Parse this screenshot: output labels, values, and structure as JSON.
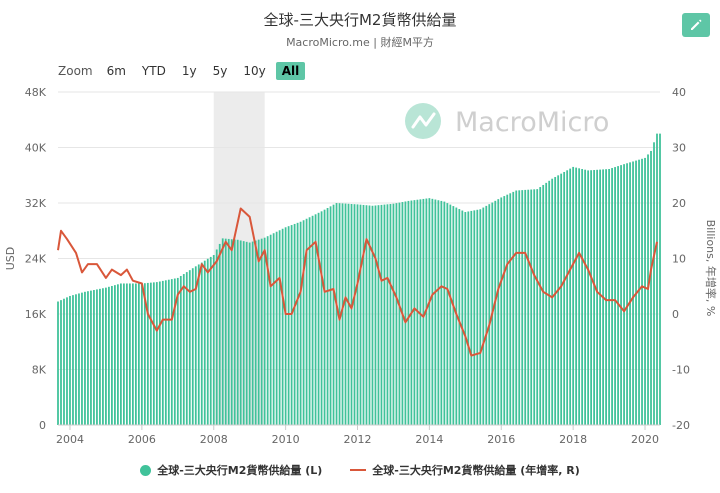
{
  "header": {
    "title": "全球-三大央行M2貨幣供給量",
    "subtitle": "MacroMicro.me | 財經M平方"
  },
  "toolbar": {
    "zoom_label": "Zoom",
    "ranges": [
      "6m",
      "YTD",
      "1y",
      "5y",
      "10y",
      "All"
    ],
    "active_range": "All",
    "edit_icon": "pencil-icon"
  },
  "watermark": "MacroMicro",
  "colors": {
    "bars": "#40c29a",
    "line": "#d9573a",
    "edit_button": "#5ec6a6",
    "shade": "#ececec"
  },
  "legend": {
    "bars_label": "全球-三大央行M2貨幣供給量 (L)",
    "line_label": "全球-三大央行M2貨幣供給量 (年增率, R)"
  },
  "chart_data": {
    "type": "bar",
    "title": "全球-三大央行M2貨幣供給量",
    "xlabel": "",
    "x_ticks": [
      "2004",
      "2006",
      "2008",
      "2010",
      "2012",
      "2014",
      "2016",
      "2018",
      "2020"
    ],
    "left_axis": {
      "label": "USD",
      "ylim": [
        0,
        48000
      ],
      "ticks": [
        "0",
        "8K",
        "16K",
        "24K",
        "32K",
        "40K",
        "48K"
      ]
    },
    "right_axis": {
      "label": "Billions, 年增率, %",
      "ylim": [
        -20,
        40
      ],
      "ticks": [
        "-20",
        "-10",
        "0",
        "10",
        "20",
        "30",
        "40"
      ]
    },
    "shaded_period": [
      "2008-01",
      "2009-06"
    ],
    "grid": true,
    "legend_position": "bottom",
    "series": [
      {
        "name": "全球-三大央行M2貨幣供給量 (L)",
        "kind": "bar",
        "axis": "left",
        "points": [
          [
            "2003-09",
            17800
          ],
          [
            "2004-01",
            18600
          ],
          [
            "2004-06",
            19200
          ],
          [
            "2005-01",
            19800
          ],
          [
            "2005-06",
            20400
          ],
          [
            "2006-01",
            20400
          ],
          [
            "2006-06",
            20600
          ],
          [
            "2007-01",
            21200
          ],
          [
            "2007-06",
            22600
          ],
          [
            "2008-01",
            24500
          ],
          [
            "2008-04",
            26900
          ],
          [
            "2008-09",
            26700
          ],
          [
            "2009-01",
            26300
          ],
          [
            "2009-06",
            27000
          ],
          [
            "2010-01",
            28500
          ],
          [
            "2010-06",
            29300
          ],
          [
            "2011-01",
            30800
          ],
          [
            "2011-06",
            32000
          ],
          [
            "2012-01",
            31800
          ],
          [
            "2012-06",
            31600
          ],
          [
            "2013-01",
            31900
          ],
          [
            "2013-06",
            32300
          ],
          [
            "2014-01",
            32700
          ],
          [
            "2014-06",
            32200
          ],
          [
            "2015-01",
            30700
          ],
          [
            "2015-06",
            31100
          ],
          [
            "2016-01",
            32800
          ],
          [
            "2016-06",
            33800
          ],
          [
            "2017-01",
            34000
          ],
          [
            "2017-06",
            35500
          ],
          [
            "2018-01",
            37200
          ],
          [
            "2018-06",
            36700
          ],
          [
            "2019-01",
            36900
          ],
          [
            "2019-06",
            37600
          ],
          [
            "2020-01",
            38500
          ],
          [
            "2020-03",
            39500
          ],
          [
            "2020-05",
            42000
          ]
        ]
      },
      {
        "name": "全球-三大央行M2貨幣供給量 (年增率, R)",
        "kind": "line",
        "axis": "right",
        "points": [
          [
            "2003-09",
            11.5
          ],
          [
            "2003-10",
            15
          ],
          [
            "2003-12",
            13.5
          ],
          [
            "2004-03",
            11
          ],
          [
            "2004-05",
            7.5
          ],
          [
            "2004-07",
            9
          ],
          [
            "2004-10",
            9
          ],
          [
            "2005-01",
            6.5
          ],
          [
            "2005-03",
            8
          ],
          [
            "2005-06",
            7
          ],
          [
            "2005-08",
            8
          ],
          [
            "2005-10",
            6
          ],
          [
            "2006-01",
            5.5
          ],
          [
            "2006-03",
            0
          ],
          [
            "2006-06",
            -3
          ],
          [
            "2006-08",
            -1
          ],
          [
            "2006-11",
            -1
          ],
          [
            "2007-01",
            3.5
          ],
          [
            "2007-03",
            5
          ],
          [
            "2007-05",
            4
          ],
          [
            "2007-07",
            4.5
          ],
          [
            "2007-09",
            9
          ],
          [
            "2007-11",
            7.5
          ],
          [
            "2008-02",
            9.5
          ],
          [
            "2008-05",
            13
          ],
          [
            "2008-07",
            11.5
          ],
          [
            "2008-10",
            19
          ],
          [
            "2009-01",
            17.5
          ],
          [
            "2009-04",
            9.5
          ],
          [
            "2009-06",
            11.5
          ],
          [
            "2009-08",
            5
          ],
          [
            "2009-11",
            6.5
          ],
          [
            "2010-01",
            0
          ],
          [
            "2010-03",
            0
          ],
          [
            "2010-06",
            4
          ],
          [
            "2010-08",
            11.5
          ],
          [
            "2010-11",
            13
          ],
          [
            "2011-02",
            4
          ],
          [
            "2011-05",
            4.5
          ],
          [
            "2011-07",
            -1
          ],
          [
            "2011-09",
            3
          ],
          [
            "2011-11",
            1
          ],
          [
            "2012-01",
            5.5
          ],
          [
            "2012-04",
            13.5
          ],
          [
            "2012-07",
            10
          ],
          [
            "2012-09",
            6
          ],
          [
            "2012-11",
            6.5
          ],
          [
            "2013-02",
            3
          ],
          [
            "2013-05",
            -1.5
          ],
          [
            "2013-08",
            1
          ],
          [
            "2013-11",
            -0.5
          ],
          [
            "2014-02",
            3.5
          ],
          [
            "2014-05",
            5
          ],
          [
            "2014-07",
            4.5
          ],
          [
            "2014-10",
            0
          ],
          [
            "2015-01",
            -4
          ],
          [
            "2015-03",
            -7.5
          ],
          [
            "2015-06",
            -7
          ],
          [
            "2015-09",
            -2
          ],
          [
            "2015-12",
            4.5
          ],
          [
            "2016-03",
            9
          ],
          [
            "2016-06",
            11
          ],
          [
            "2016-09",
            11
          ],
          [
            "2016-12",
            7
          ],
          [
            "2017-03",
            4
          ],
          [
            "2017-06",
            3
          ],
          [
            "2017-09",
            5
          ],
          [
            "2017-12",
            8
          ],
          [
            "2018-03",
            11
          ],
          [
            "2018-06",
            8
          ],
          [
            "2018-09",
            4
          ],
          [
            "2018-12",
            2.5
          ],
          [
            "2019-03",
            2.5
          ],
          [
            "2019-06",
            0.5
          ],
          [
            "2019-09",
            3
          ],
          [
            "2019-12",
            5
          ],
          [
            "2020-02",
            4.5
          ],
          [
            "2020-03",
            8
          ],
          [
            "2020-05",
            13
          ]
        ]
      }
    ]
  }
}
